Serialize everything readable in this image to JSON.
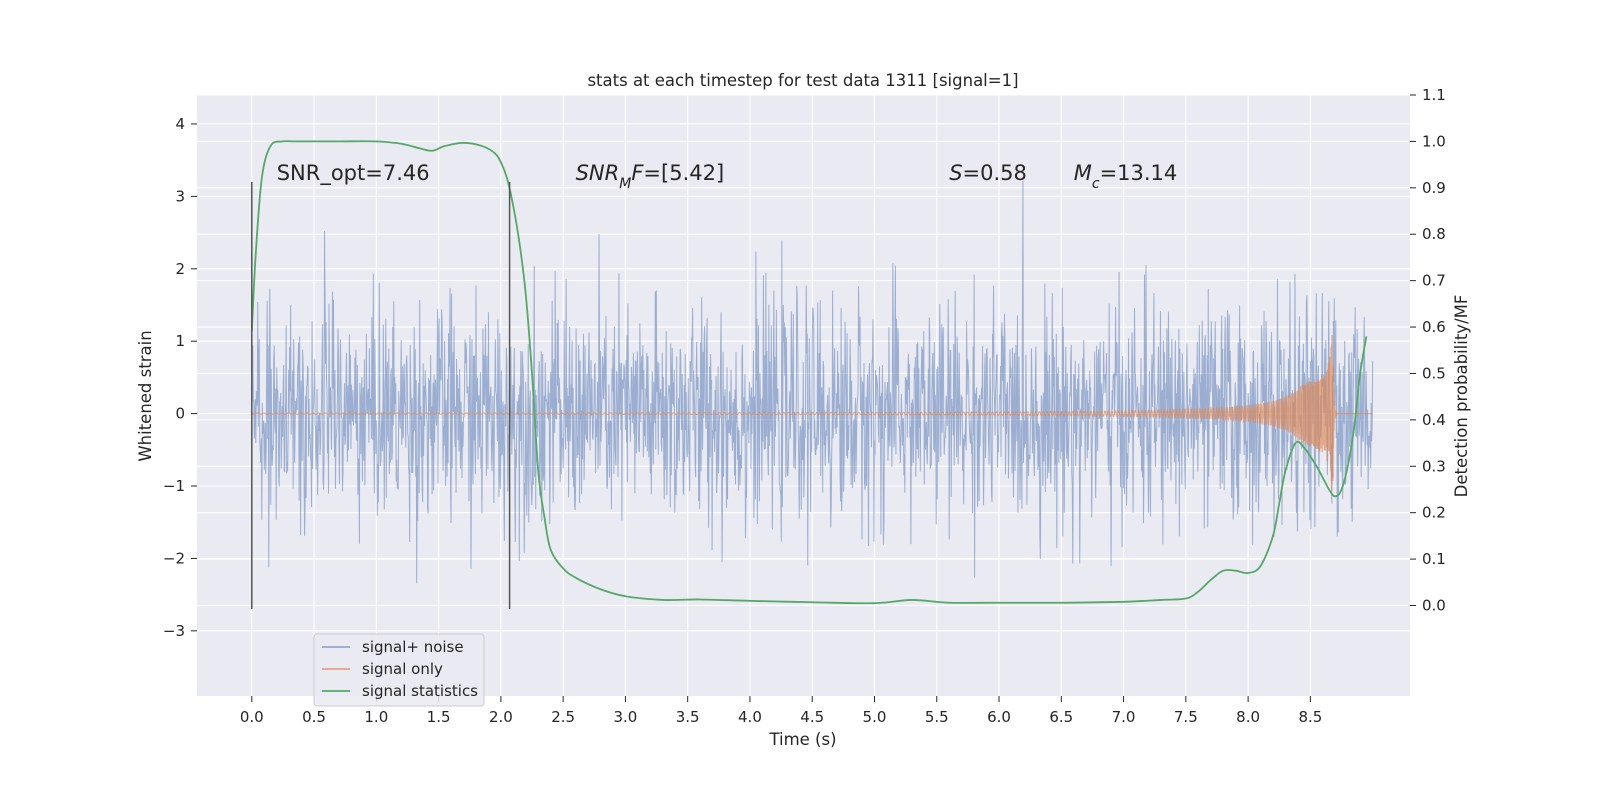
{
  "chart_data": {
    "type": "line",
    "title": "stats at each timestep for test data 1311 [signal=1]",
    "xlabel": "Time (s)",
    "ylabel": "Whitened strain",
    "y2label": "Detection probability/MF",
    "xlim": [
      -0.44,
      9.3
    ],
    "ylim": [
      -3.9,
      4.4
    ],
    "y2lim": [
      -0.195,
      1.1
    ],
    "xticks": [
      0.0,
      0.5,
      1.0,
      1.5,
      2.0,
      2.5,
      3.0,
      3.5,
      4.0,
      4.5,
      5.0,
      5.5,
      6.0,
      6.5,
      7.0,
      7.5,
      8.0,
      8.5
    ],
    "xtick_labels": [
      "0.0",
      "0.5",
      "1.0",
      "1.5",
      "2.0",
      "2.5",
      "3.0",
      "3.5",
      "4.0",
      "4.5",
      "5.0",
      "5.5",
      "6.0",
      "6.5",
      "7.0",
      "7.5",
      "8.0",
      "8.5"
    ],
    "yticks": [
      -3,
      -2,
      -1,
      0,
      1,
      2,
      3,
      4
    ],
    "ytick_labels": [
      "−3",
      "−2",
      "−1",
      "0",
      "1",
      "2",
      "3",
      "4"
    ],
    "y2ticks": [
      0.0,
      0.1,
      0.2,
      0.3,
      0.4,
      0.5,
      0.6,
      0.7,
      0.8,
      0.9,
      1.0,
      1.1
    ],
    "y2tick_labels": [
      "0.0",
      "0.1",
      "0.2",
      "0.3",
      "0.4",
      "0.5",
      "0.6",
      "0.7",
      "0.8",
      "0.9",
      "1.0",
      "1.1"
    ],
    "grid": true,
    "legend_position": "lower-left",
    "annotations": [
      {
        "text": "SNR_opt=7.46",
        "x": 0.2
      },
      {
        "text": "SNR_MF=[5.42]",
        "x": 2.6
      },
      {
        "text": "S=0.58",
        "x": 5.6
      },
      {
        "text": "M_c=13.14",
        "x": 6.6
      }
    ],
    "vertical_lines": [
      0.0,
      2.07
    ],
    "vertical_line_yrange": [
      -2.7,
      3.2
    ],
    "series": [
      {
        "name": "signal+ noise",
        "color": "#4c72b0",
        "kind": "noise",
        "x_range": [
          0.0,
          9.0
        ],
        "sample_step": 0.004,
        "approx_std": 0.75,
        "approx_extremes": [
          -3.5,
          4.0
        ]
      },
      {
        "name": "signal only",
        "color": "#dd8452",
        "kind": "chirp",
        "x_range": [
          0.0,
          9.0
        ],
        "merger_time": 8.68,
        "peak_amplitude": 1.3
      },
      {
        "name": "signal statistics",
        "color": "#55a868",
        "axis": "right",
        "x": [
          0.0,
          0.03,
          0.08,
          0.15,
          0.25,
          0.35,
          0.5,
          0.7,
          1.0,
          1.2,
          1.35,
          1.45,
          1.55,
          1.7,
          1.85,
          1.95,
          2.0,
          2.05,
          2.1,
          2.15,
          2.2,
          2.25,
          2.3,
          2.35,
          2.4,
          2.5,
          2.6,
          2.8,
          3.0,
          3.3,
          3.6,
          4.0,
          4.5,
          5.0,
          5.3,
          5.6,
          6.0,
          6.5,
          7.0,
          7.3,
          7.5,
          7.6,
          7.7,
          7.8,
          7.9,
          8.0,
          8.1,
          8.2,
          8.25,
          8.3,
          8.38,
          8.45,
          8.55,
          8.65,
          8.7,
          8.75,
          8.8,
          8.85,
          8.9,
          8.95
        ],
        "y": [
          0.59,
          0.75,
          0.92,
          0.99,
          1.0,
          1.0,
          1.0,
          1.0,
          1.0,
          0.995,
          0.985,
          0.98,
          0.99,
          0.997,
          0.99,
          0.975,
          0.955,
          0.92,
          0.86,
          0.78,
          0.67,
          0.5,
          0.29,
          0.19,
          0.12,
          0.08,
          0.06,
          0.035,
          0.02,
          0.012,
          0.013,
          0.01,
          0.007,
          0.005,
          0.012,
          0.006,
          0.006,
          0.006,
          0.008,
          0.012,
          0.015,
          0.03,
          0.055,
          0.075,
          0.075,
          0.07,
          0.085,
          0.15,
          0.22,
          0.29,
          0.35,
          0.34,
          0.3,
          0.25,
          0.235,
          0.25,
          0.3,
          0.38,
          0.5,
          0.58
        ]
      }
    ]
  }
}
